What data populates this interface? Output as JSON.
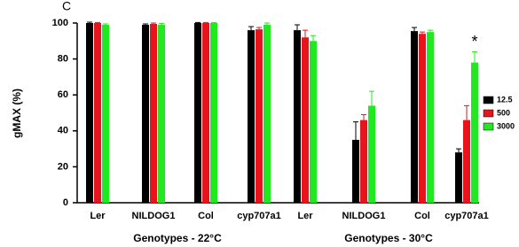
{
  "chart_data": {
    "type": "bar",
    "panel_label": "C",
    "ylabel": "gMAX  (%)",
    "categories": [
      "Ler",
      "NILDOG1",
      "Col",
      "cyp707a1",
      "Ler",
      "NILDOG1",
      "Col",
      "cyp707a1"
    ],
    "group_labels": [
      "Genotypes - 22°C",
      "Genotypes - 30°C"
    ],
    "series": [
      {
        "name": "12.5",
        "color": "#000000",
        "values": [
          100,
          99,
          100,
          96,
          96,
          35,
          95.5,
          28
        ],
        "errors": [
          0.5,
          0.5,
          0.3,
          2,
          3,
          10,
          2,
          2
        ]
      },
      {
        "name": "500",
        "color": "#e8141b",
        "values": [
          100,
          99.5,
          100,
          96.5,
          92,
          46,
          94,
          46
        ],
        "errors": [
          0.3,
          0.5,
          0.3,
          1,
          4,
          3,
          1,
          8
        ]
      },
      {
        "name": "3000",
        "color": "#22e822",
        "values": [
          99,
          99,
          100,
          99,
          90,
          54,
          95,
          78
        ],
        "errors": [
          0.5,
          0.8,
          0.3,
          1,
          3,
          8,
          1,
          6
        ]
      }
    ],
    "annotations": [
      {
        "text": "*"
      }
    ],
    "ylim": [
      0,
      100
    ],
    "yticks": [
      0,
      20,
      40,
      60,
      80,
      100
    ]
  }
}
